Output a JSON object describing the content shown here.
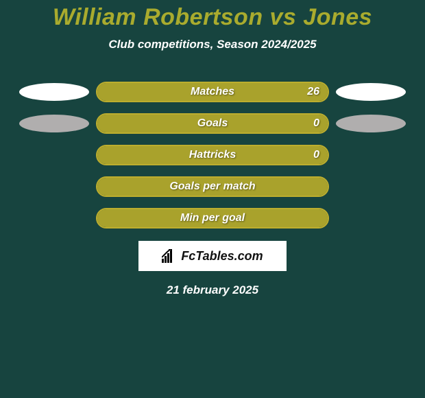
{
  "colors": {
    "background": "#17443f",
    "text_primary": "#ffffff",
    "title_accent": "#a9ab2e",
    "bar_border": "#bdae2e",
    "bar_fill": "#a9a22c",
    "ellipse_fill": "#ffffff",
    "ellipse_muted": "#b0aeae",
    "brand_bg": "#ffffff",
    "brand_text": "#000000"
  },
  "typography": {
    "title_fontsize": 34,
    "subtitle_fontsize": 17,
    "stat_label_fontsize": 16,
    "date_fontsize": 17
  },
  "title": "William Robertson vs Jones",
  "subtitle": "Club competitions, Season 2024/2025",
  "stats": [
    {
      "label": "Matches",
      "value": "26",
      "fill_pct": 100,
      "show_value": true,
      "left_ellipse": true,
      "right_ellipse": true,
      "left_muted": false,
      "right_muted": false
    },
    {
      "label": "Goals",
      "value": "0",
      "fill_pct": 100,
      "show_value": true,
      "left_ellipse": true,
      "right_ellipse": true,
      "left_muted": true,
      "right_muted": true
    },
    {
      "label": "Hattricks",
      "value": "0",
      "fill_pct": 100,
      "show_value": true,
      "left_ellipse": false,
      "right_ellipse": false,
      "left_muted": false,
      "right_muted": false
    },
    {
      "label": "Goals per match",
      "value": "",
      "fill_pct": 100,
      "show_value": false,
      "left_ellipse": false,
      "right_ellipse": false,
      "left_muted": false,
      "right_muted": false
    },
    {
      "label": "Min per goal",
      "value": "",
      "fill_pct": 100,
      "show_value": false,
      "left_ellipse": false,
      "right_ellipse": false,
      "left_muted": false,
      "right_muted": false
    }
  ],
  "brand": {
    "text": "FcTables.com"
  },
  "date": "21 february 2025"
}
